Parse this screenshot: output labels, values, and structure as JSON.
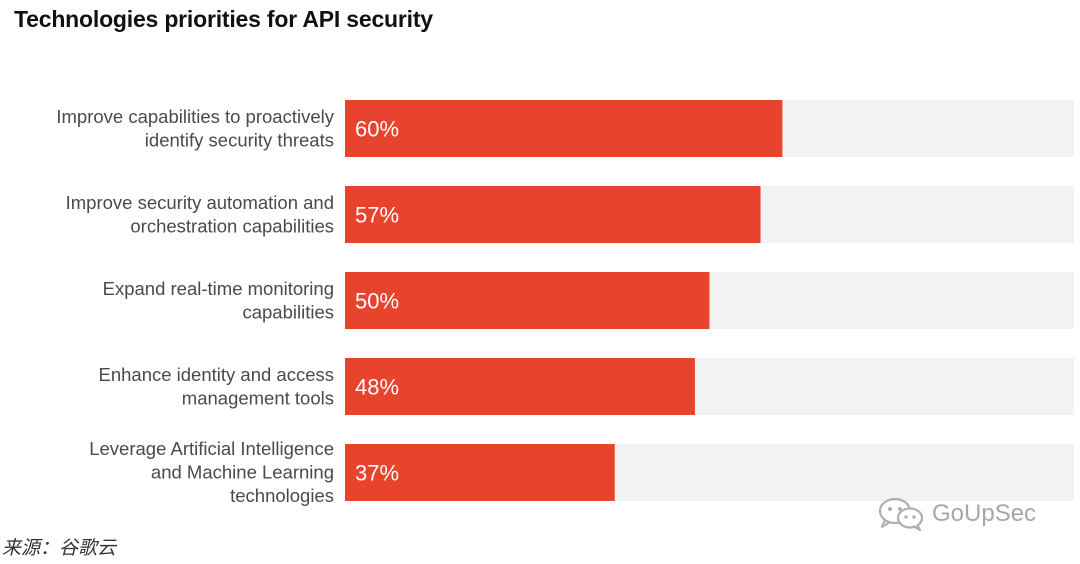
{
  "chart_data": {
    "type": "bar",
    "orientation": "horizontal",
    "title": "Technologies priorities for API security",
    "categories": [
      [
        "Improve capabilities to proactively",
        "identify security threats"
      ],
      [
        "Improve security automation and",
        "orchestration capabilities"
      ],
      [
        "Expand real-time monitoring",
        "capabilities"
      ],
      [
        "Enhance identity and access",
        "management tools"
      ],
      [
        "Leverage Artificial Intelligence",
        "and Machine Learning",
        "technologies"
      ]
    ],
    "values": [
      60,
      57,
      50,
      48,
      37
    ],
    "value_labels": [
      "60%",
      "57%",
      "50%",
      "48%",
      "37%"
    ],
    "xlim": [
      0,
      100
    ],
    "unit": "%",
    "grid": false,
    "legend": "none",
    "colors": {
      "bar": "#e8432c",
      "track": "#f2f2f2"
    }
  },
  "footer": {
    "source": "来源：谷歌云"
  },
  "watermark": {
    "text": "GoUpSec",
    "icon": "wechat-icon"
  }
}
